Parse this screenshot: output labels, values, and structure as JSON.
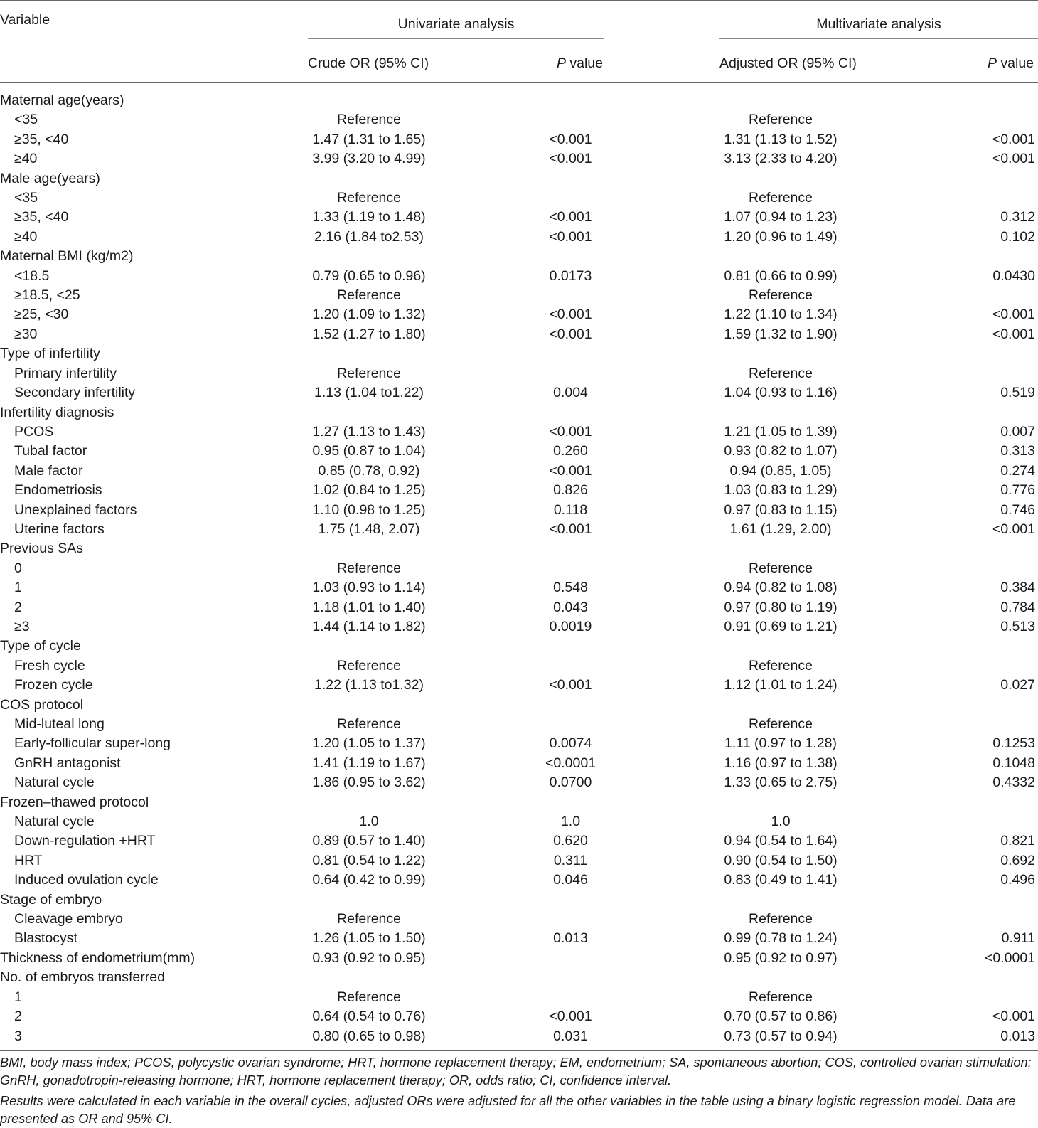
{
  "header": {
    "variable": "Variable",
    "univariate": "Univariate analysis",
    "multivariate": "Multivariate analysis",
    "crude_or": "Crude OR (95% CI)",
    "adjusted_or": "Adjusted OR (95% CI)",
    "p_italic": "P",
    "p_suffix": " value"
  },
  "rows": [
    {
      "label": "Maternal age(years)",
      "indent": false,
      "crude": "",
      "p1": "",
      "adj": "",
      "p2": ""
    },
    {
      "label": "<35",
      "indent": true,
      "crude": "Reference",
      "p1": "",
      "adj": "Reference",
      "p2": ""
    },
    {
      "label": "≥35, <40",
      "indent": true,
      "crude": "1.47 (1.31 to 1.65)",
      "p1": "<0.001",
      "adj": "1.31 (1.13 to 1.52)",
      "p2": "<0.001"
    },
    {
      "label": "≥40",
      "indent": true,
      "crude": "3.99 (3.20 to 4.99)",
      "p1": "<0.001",
      "adj": "3.13 (2.33 to 4.20)",
      "p2": "<0.001"
    },
    {
      "label": "Male age(years)",
      "indent": false,
      "crude": "",
      "p1": "",
      "adj": "",
      "p2": ""
    },
    {
      "label": "<35",
      "indent": true,
      "crude": "Reference",
      "p1": "",
      "adj": "Reference",
      "p2": ""
    },
    {
      "label": "≥35, <40",
      "indent": true,
      "crude": "1.33 (1.19 to 1.48)",
      "p1": "<0.001",
      "adj": "1.07 (0.94 to 1.23)",
      "p2": "0.312"
    },
    {
      "label": "≥40",
      "indent": true,
      "crude": "2.16 (1.84 to2.53)",
      "p1": "<0.001",
      "adj": "1.20 (0.96 to 1.49)",
      "p2": "0.102"
    },
    {
      "label": "Maternal BMI (kg/m2)",
      "indent": false,
      "crude": "",
      "p1": "",
      "adj": "",
      "p2": ""
    },
    {
      "label": "<18.5",
      "indent": true,
      "crude": "0.79 (0.65 to 0.96)",
      "p1": "0.0173",
      "adj": "0.81 (0.66 to 0.99)",
      "p2": "0.0430"
    },
    {
      "label": "≥18.5, <25",
      "indent": true,
      "crude": "Reference",
      "p1": "",
      "adj": "Reference",
      "p2": ""
    },
    {
      "label": "≥25, <30",
      "indent": true,
      "crude": "1.20 (1.09 to 1.32)",
      "p1": "<0.001",
      "adj": "1.22 (1.10 to 1.34)",
      "p2": "<0.001"
    },
    {
      "label": "≥30",
      "indent": true,
      "crude": "1.52 (1.27 to 1.80)",
      "p1": "<0.001",
      "adj": "1.59 (1.32 to 1.90)",
      "p2": "<0.001"
    },
    {
      "label": "Type of infertility",
      "indent": false,
      "crude": "",
      "p1": "",
      "adj": "",
      "p2": ""
    },
    {
      "label": "Primary infertility",
      "indent": true,
      "crude": "Reference",
      "p1": "",
      "adj": "Reference",
      "p2": ""
    },
    {
      "label": "Secondary infertility",
      "indent": true,
      "crude": "1.13 (1.04 to1.22)",
      "p1": "0.004",
      "adj": "1.04 (0.93 to 1.16)",
      "p2": "0.519"
    },
    {
      "label": "Infertility diagnosis",
      "indent": false,
      "crude": "",
      "p1": "",
      "adj": "",
      "p2": ""
    },
    {
      "label": "PCOS",
      "indent": true,
      "crude": "1.27 (1.13 to 1.43)",
      "p1": "<0.001",
      "adj": "1.21 (1.05 to 1.39)",
      "p2": "0.007"
    },
    {
      "label": "Tubal factor",
      "indent": true,
      "crude": "0.95 (0.87 to 1.04)",
      "p1": "0.260",
      "adj": "0.93 (0.82 to 1.07)",
      "p2": "0.313"
    },
    {
      "label": "Male factor",
      "indent": true,
      "crude": "0.85 (0.78, 0.92)",
      "p1": "<0.001",
      "adj": "0.94 (0.85, 1.05)",
      "p2": "0.274"
    },
    {
      "label": "Endometriosis",
      "indent": true,
      "crude": "1.02 (0.84 to 1.25)",
      "p1": "0.826",
      "adj": "1.03 (0.83 to 1.29)",
      "p2": "0.776"
    },
    {
      "label": "Unexplained factors",
      "indent": true,
      "crude": "1.10 (0.98 to 1.25)",
      "p1": "0.118",
      "adj": "0.97 (0.83 to 1.15)",
      "p2": "0.746"
    },
    {
      "label": "Uterine factors",
      "indent": true,
      "crude": "1.75 (1.48, 2.07)",
      "p1": "<0.001",
      "adj": "1.61 (1.29, 2.00)",
      "p2": "<0.001"
    },
    {
      "label": "Previous SAs",
      "indent": false,
      "crude": "",
      "p1": "",
      "adj": "",
      "p2": ""
    },
    {
      "label": "0",
      "indent": true,
      "crude": "Reference",
      "p1": "",
      "adj": "Reference",
      "p2": ""
    },
    {
      "label": "1",
      "indent": true,
      "crude": "1.03 (0.93 to 1.14)",
      "p1": "0.548",
      "adj": "0.94 (0.82 to 1.08)",
      "p2": "0.384"
    },
    {
      "label": "2",
      "indent": true,
      "crude": "1.18 (1.01 to 1.40)",
      "p1": "0.043",
      "adj": "0.97 (0.80 to 1.19)",
      "p2": "0.784"
    },
    {
      "label": "≥3",
      "indent": true,
      "crude": "1.44 (1.14 to 1.82)",
      "p1": "0.0019",
      "adj": "0.91 (0.69 to 1.21)",
      "p2": "0.513"
    },
    {
      "label": "Type of cycle",
      "indent": false,
      "crude": "",
      "p1": "",
      "adj": "",
      "p2": ""
    },
    {
      "label": "Fresh cycle",
      "indent": true,
      "crude": "Reference",
      "p1": "",
      "adj": "Reference",
      "p2": ""
    },
    {
      "label": "Frozen cycle",
      "indent": true,
      "crude": "1.22 (1.13 to1.32)",
      "p1": "<0.001",
      "adj": "1.12 (1.01 to 1.24)",
      "p2": "0.027"
    },
    {
      "label": "COS protocol",
      "indent": false,
      "crude": "",
      "p1": "",
      "adj": "",
      "p2": ""
    },
    {
      "label": "Mid-luteal long",
      "indent": true,
      "crude": "Reference",
      "p1": "",
      "adj": "Reference",
      "p2": ""
    },
    {
      "label": "Early-follicular super-long",
      "indent": true,
      "crude": "1.20 (1.05 to 1.37)",
      "p1": "0.0074",
      "adj": "1.11 (0.97 to 1.28)",
      "p2": "0.1253"
    },
    {
      "label": "GnRH antagonist",
      "indent": true,
      "crude": "1.41 (1.19 to 1.67)",
      "p1": "<0.0001",
      "adj": "1.16 (0.97 to 1.38)",
      "p2": "0.1048"
    },
    {
      "label": "Natural cycle",
      "indent": true,
      "crude": "1.86 (0.95 to 3.62)",
      "p1": "0.0700",
      "adj": "1.33 (0.65 to 2.75)",
      "p2": "0.4332"
    },
    {
      "label": "Frozen–thawed protocol",
      "indent": false,
      "crude": "",
      "p1": "",
      "adj": "",
      "p2": ""
    },
    {
      "label": "Natural cycle",
      "indent": true,
      "crude": "1.0",
      "p1": "1.0",
      "adj": "1.0",
      "p2": ""
    },
    {
      "label": "Down-regulation +HRT",
      "indent": true,
      "crude": "0.89 (0.57 to 1.40)",
      "p1": "0.620",
      "adj": "0.94 (0.54 to 1.64)",
      "p2": "0.821"
    },
    {
      "label": "HRT",
      "indent": true,
      "crude": "0.81 (0.54 to 1.22)",
      "p1": "0.311",
      "adj": "0.90 (0.54 to 1.50)",
      "p2": "0.692"
    },
    {
      "label": "Induced ovulation cycle",
      "indent": true,
      "crude": "0.64 (0.42 to 0.99)",
      "p1": "0.046",
      "adj": "0.83 (0.49 to 1.41)",
      "p2": "0.496"
    },
    {
      "label": "Stage of embryo",
      "indent": false,
      "crude": "",
      "p1": "",
      "adj": "",
      "p2": ""
    },
    {
      "label": "Cleavage embryo",
      "indent": true,
      "crude": "Reference",
      "p1": "",
      "adj": "Reference",
      "p2": ""
    },
    {
      "label": "Blastocyst",
      "indent": true,
      "crude": "1.26 (1.05 to 1.50)",
      "p1": "0.013",
      "adj": "0.99 (0.78 to 1.24)",
      "p2": "0.911"
    },
    {
      "label": "Thickness of endometrium(mm)",
      "indent": false,
      "crude": "0.93 (0.92 to 0.95)",
      "p1": "",
      "adj": "0.95 (0.92 to 0.97)",
      "p2": "<0.0001"
    },
    {
      "label": "No. of embryos transferred",
      "indent": false,
      "crude": "",
      "p1": "",
      "adj": "",
      "p2": ""
    },
    {
      "label": "1",
      "indent": true,
      "crude": "Reference",
      "p1": "",
      "adj": "Reference",
      "p2": ""
    },
    {
      "label": "2",
      "indent": true,
      "crude": "0.64 (0.54 to 0.76)",
      "p1": "<0.001",
      "adj": "0.70 (0.57 to 0.86)",
      "p2": "<0.001"
    },
    {
      "label": "3",
      "indent": true,
      "crude": "0.80 (0.65 to 0.98)",
      "p1": "0.031",
      "adj": "0.73 (0.57 to 0.94)",
      "p2": "0.013"
    }
  ],
  "footnotes": {
    "abbreviations": "BMI, body mass index; PCOS, polycystic ovarian syndrome; HRT, hormone replacement therapy; EM, endometrium; SA, spontaneous abortion; COS, controlled ovarian stimulation; GnRH, gonadotropin-releasing hormone; HRT, hormone replacement therapy; OR, odds ratio; CI, confidence interval.",
    "method": "Results were calculated in each variable in the overall cycles, adjusted ORs were adjusted for all the other variables in the table using a binary logistic regression model. Data are presented as OR and 95% CI."
  }
}
